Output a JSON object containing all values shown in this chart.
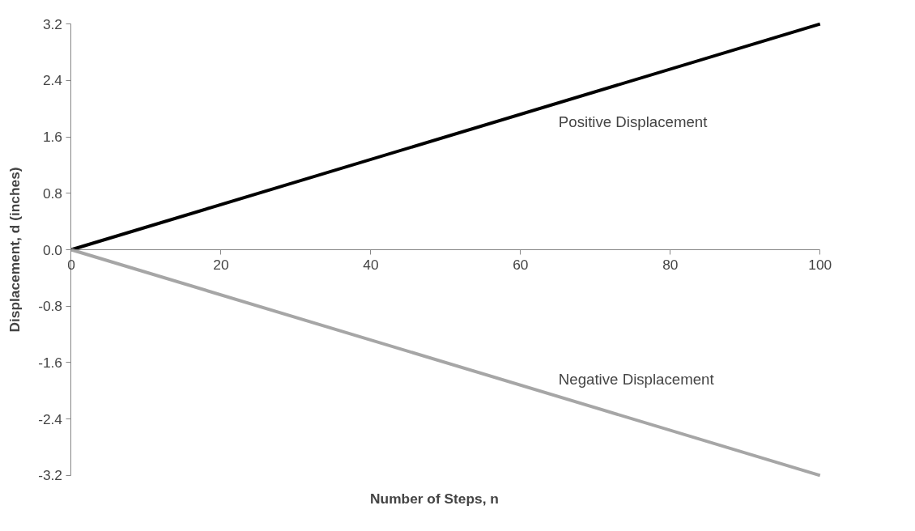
{
  "chart_data": {
    "type": "line",
    "xlabel": "Number of Steps, n",
    "ylabel": "Displacement, d (inches)",
    "x": [
      0,
      100
    ],
    "series": [
      {
        "name": "Positive Displacement",
        "color": "#000000",
        "values": [
          0,
          3.2
        ]
      },
      {
        "name": "Negative Displacement",
        "color": "#a6a6a6",
        "values": [
          0,
          -3.2
        ]
      }
    ],
    "xlim": [
      0,
      100
    ],
    "ylim": [
      -3.2,
      3.2
    ],
    "xticks": [
      0,
      20,
      40,
      60,
      80,
      100
    ],
    "yticks": [
      -3.2,
      -2.4,
      -1.6,
      -0.8,
      {
        "value": 0,
        "label": "0.0"
      },
      0.8,
      1.6,
      2.4,
      3.2
    ],
    "grid": false,
    "marker": "none",
    "line_style": "solid"
  }
}
